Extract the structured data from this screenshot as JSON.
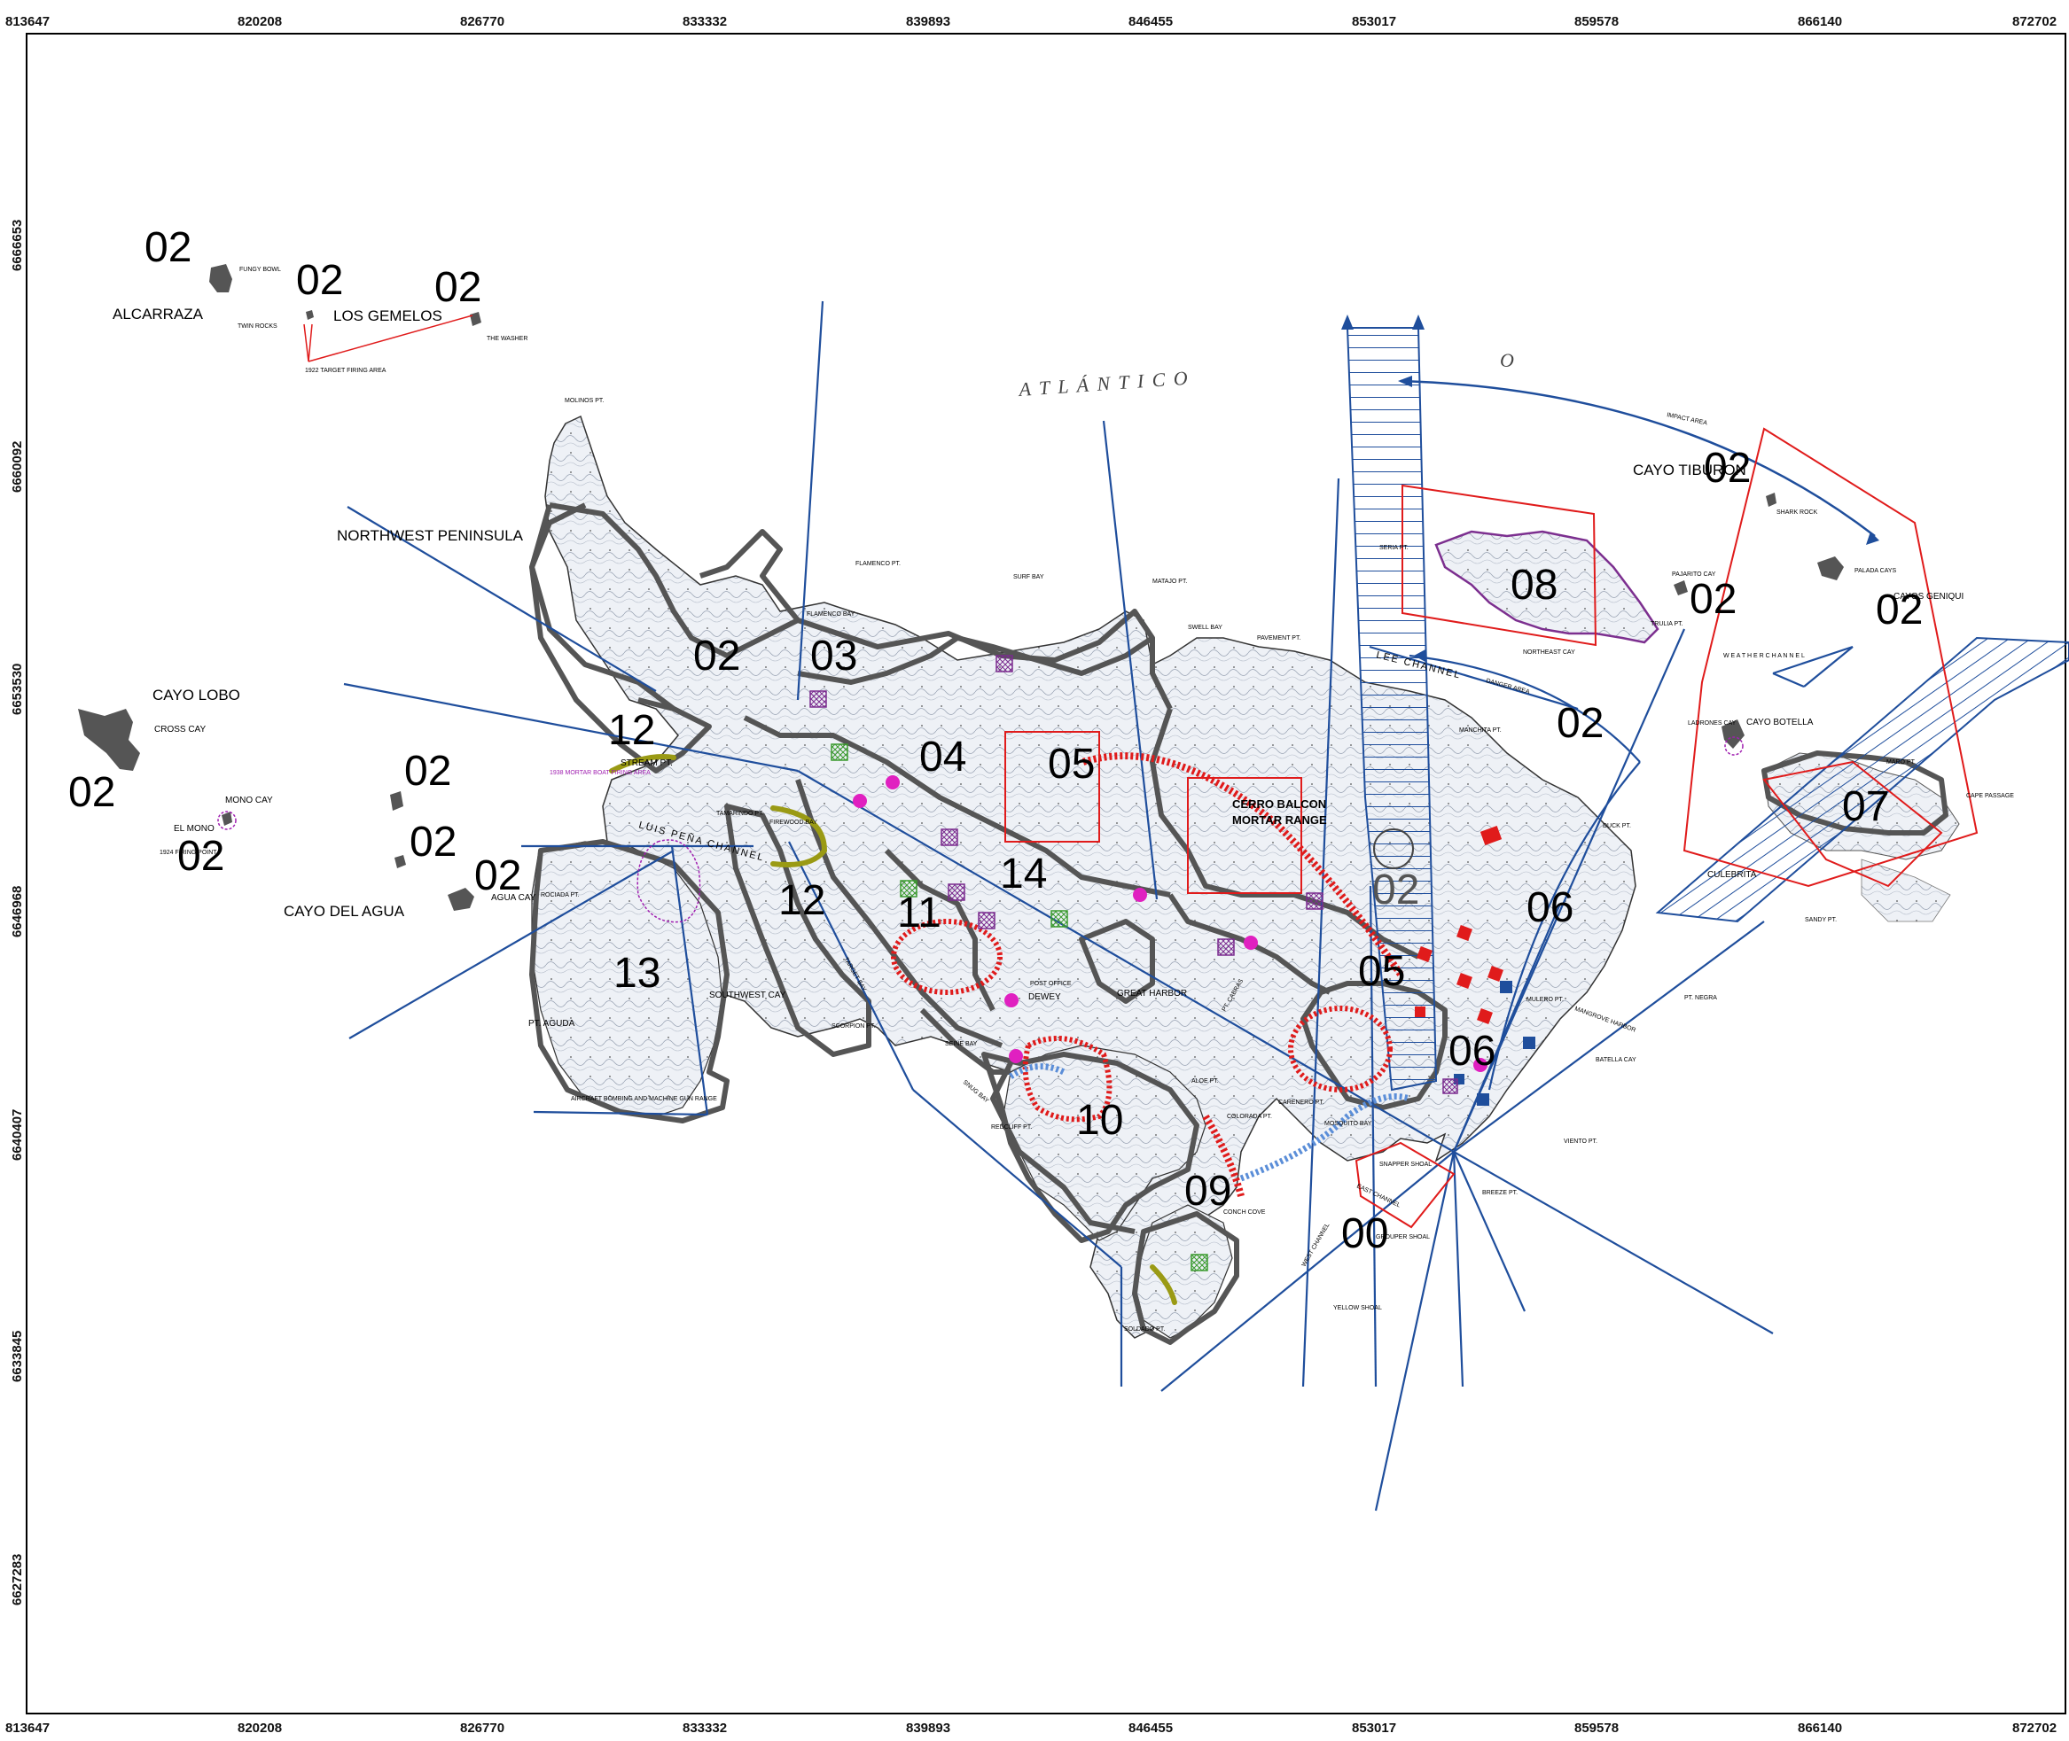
{
  "map": {
    "x_ticks": [
      "813647",
      "820208",
      "826770",
      "833332",
      "839893",
      "846455",
      "853017",
      "859578",
      "866140",
      "872702"
    ],
    "y_ticks": [
      "6666653",
      "6660092",
      "6653530",
      "6646968",
      "6640407",
      "6633845",
      "6627283"
    ],
    "sea_label": "A T L Á N T I C O",
    "sea_o": "O",
    "zone_labels": {
      "z02_alcarraza": "02",
      "z02_gemelos": "02",
      "z02_washer": "02",
      "z02_lobo": "02",
      "z02_mono": "02",
      "z02_agua1": "02",
      "z02_agua2": "02",
      "z02_agua3": "02",
      "z02_peninsula": "02",
      "z03": "03",
      "z12_a": "12",
      "z04": "04",
      "z05_a": "05",
      "z12_b": "12",
      "z14": "14",
      "z11": "11",
      "z13": "13",
      "z10": "10",
      "z09": "09",
      "z00": "00",
      "z05_b": "05",
      "z06_a": "06",
      "z06_b": "06",
      "z02_center": "02",
      "z02_lee": "02",
      "z08": "08",
      "z02_tiburon": "02",
      "z02_pajarito": "02",
      "z02_geniqui": "02",
      "z07": "07"
    },
    "place_labels": {
      "alcarraza": "ALCARRAZA",
      "fungy": "FUNGY BOWL",
      "twin": "TWIN ROCKS",
      "gemelos": "LOS GEMELOS",
      "washer": "THE WASHER",
      "target1922": "1922 TARGET FIRING AREA",
      "molinos": "MOLINOS PT.",
      "nwpen": "NORTHWEST PENINSULA",
      "cayolobo": "CAYO LOBO",
      "crosscay": "CROSS CAY",
      "monocay": "MONO CAY",
      "elmono": "EL MONO",
      "firing1924": "1924 FIRING POINT",
      "cayoagua": "CAYO DEL AGUA",
      "aguacay": "AGUA CAY",
      "rociada": "ROCIADA PT.",
      "ptagua": "PT. AGUDA",
      "swcay": "SOUTHWEST CAY",
      "aircraft": "AIRCRAFT BOMBING AND MACHINE GUN RANGE",
      "flamencopt": "FLAMENCO PT.",
      "flamencobay": "FLAMENCO BAY",
      "surfbay": "SURF BAY",
      "matajo": "MATAJO PT.",
      "swellbay": "SWELL BAY",
      "pavement": "PAVEMENT PT.",
      "stream": "STREAM PT.",
      "tamarindo": "TAMARINDO PT.",
      "firewood": "FIREWOOD BAY",
      "luis": "LUIS PEÑA CHANNEL",
      "mortar1938": "1938 MORTAR BOAT FIRING AREA",
      "cerro": "CERRO BALCON",
      "mortarrange": "MORTAR RANGE",
      "greatharbor": "GREAT HARBOR",
      "dewey": "DEWEY",
      "postoffice": "POST OFFICE",
      "targetbay": "TARGET BAY",
      "scorpion": "SCORPION PT.",
      "seinebay": "SEINE BAY",
      "snugbay": "SNUG BAY",
      "redcliff": "REDCLIFF PT.",
      "aloe": "ALOE PT.",
      "colorada": "COLORADA PT.",
      "carenero": "CARENERO PT.",
      "culebrita": "CULEBRITA",
      "cayobotella": "CAYO BOTELLA",
      "cayotiburon": "CAYO TIBURON",
      "sharkrock": "SHARK ROCK",
      "paladacays": "PALADA CAYS",
      "cayosgeniqui": "CAYOS GENIQUI",
      "weather": "W E A T H E R  C H A N N E L",
      "northeastcay": "NORTHEAST CAY",
      "lee": "LEE CHANNEL",
      "manchita": "MANCHITA PT.",
      "duckpt": "DUCK PT.",
      "mulero": "MULERO PT.",
      "mangrove": "MANGROVE HARBOR",
      "batella": "BATELLA CAY",
      "breeze": "BREEZE PT.",
      "mosquito": "MOSQUITO BAY",
      "snapper": "SNAPPER SHOAL",
      "grouper": "GROUPER SHOAL",
      "eastchan": "EAST CHANNEL",
      "westchan": "WEST CHANNEL",
      "yellow": "YELLOW SHOAL",
      "soldado": "SOLDADO PT.",
      "conch": "CONCH COVE",
      "sandypt": "SANDY PT.",
      "capepassage": "CAPE PASSAGE",
      "ptnegra": "PT. NEGRA",
      "viento": "VIENTO PT.",
      "impactarea": "IMPACT AREA",
      "seriapt": "SERIA PT.",
      "trulia": "TRULIA PT.",
      "pajarito": "PAJARITO CAY",
      "ladrones": "LADRONES CAY",
      "mariapt": "MARO PT.",
      "dangerarea": "DANGER AREA",
      "ptcabras": "PT. CABRAS"
    }
  }
}
